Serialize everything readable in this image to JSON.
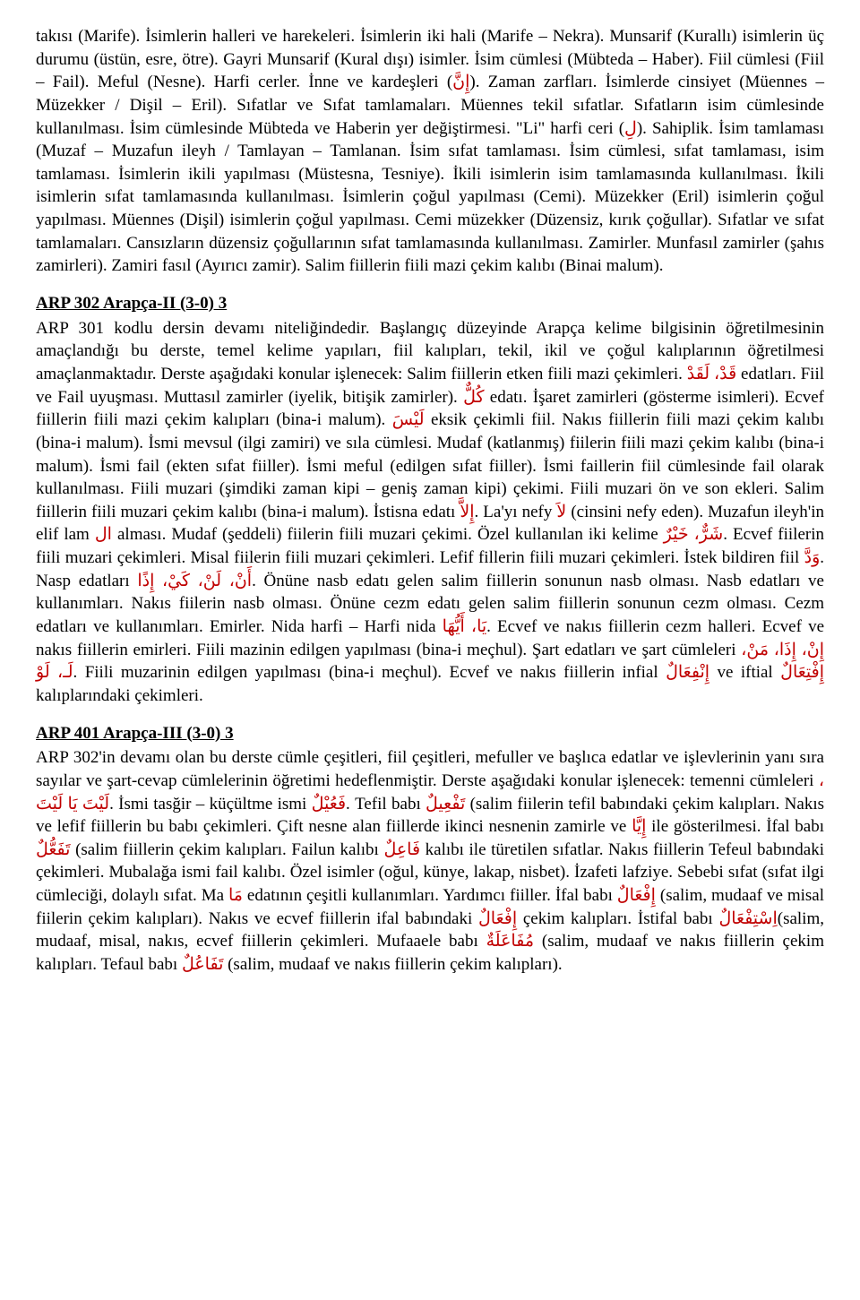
{
  "colors": {
    "text": "#000000",
    "arabic": "#c00000",
    "background": "#ffffff"
  },
  "typography": {
    "body_font": "Times New Roman",
    "body_size_pt": 14,
    "heading_weight": "bold",
    "heading_underline": true
  },
  "para1": {
    "t1": "takısı (Marife). İsimlerin halleri ve harekeleri. İsimlerin iki hali (Marife – Nekra). Munsarif (Kurallı) isimlerin üç durumu (üstün, esre, ötre). Gayri Munsarif (Kural dışı) isimler. İsim cümlesi (Mübteda – Haber). Fiil cümlesi (Fiil – Fail). Meful (Nesne). Harfi cerler. İnne ve kardeşleri (",
    "a1": "إِنَّ",
    "t2": "). Zaman zarfları. İsimlerde cinsiyet (Müennes – Müzekker / Dişil – Eril). Sıfatlar ve Sıfat tamlamaları. Müennes tekil sıfatlar. Sıfatların isim cümlesinde kullanılması. İsim cümlesinde Mübteda ve Haberin yer değiştirmesi. \"Li\" harfi ceri (",
    "a2": "لِ",
    "t3": "). Sahiplik. İsim tamlaması (Muzaf – Muzafun ileyh / Tamlayan – Tamlanan. İsim sıfat tamlaması. İsim cümlesi, sıfat tamlaması, isim tamlaması. İsimlerin ikili yapılması (Müstesna, Tesniye). İkili isimlerin isim tamlamasında kullanılması. İkili isimlerin sıfat tamlamasında kullanılması. İsimlerin çoğul yapılması (Cemi). Müzekker (Eril) isimlerin çoğul yapılması. Müennes (Dişil) isimlerin çoğul yapılması. Cemi müzekker (Düzensiz, kırık çoğullar). Sıfatlar ve sıfat tamlamaları. Cansızların düzensiz çoğullarının sıfat tamlamasında kullanılması. Zamirler. Munfasıl zamirler (şahıs zamirleri). Zamiri fasıl (Ayırıcı zamir). Salim fiillerin fiili mazi çekim kalıbı (Binai malum)."
  },
  "heading2": "ARP 302 Arapça-II (3-0) 3",
  "para2": {
    "t1": "ARP 301 kodlu dersin devamı niteliğindedir. Başlangıç düzeyinde Arapça kelime bilgisinin öğretilmesinin amaçlandığı bu derste, temel kelime yapıları, fiil kalıpları, tekil, ikil ve çoğul kalıplarının öğretilmesi amaçlanmaktadır. Derste aşağıdaki konular işlenecek: Salim fiillerin etken fiili mazi çekimleri. ",
    "a1": "قَدْ، لَقَدْ",
    "t2": " edatları. Fiil ve Fail uyuşması. Muttasıl zamirler (iyelik, bitişik zamirler). ",
    "a2": "كُلٌّ",
    "t3": " edatı.  İşaret zamirleri (gösterme isimleri). Ecvef fiillerin fiili mazi çekim kalıpları (bina-i malum). ",
    "a3": "لَيْسَ",
    "t4": " eksik çekimli fiil. Nakıs fiillerin fiili mazi çekim kalıbı (bina-i malum). İsmi mevsul (ilgi zamiri) ve sıla cümlesi. Mudaf (katlanmış) fiilerin fiili mazi çekim kalıbı (bina-i malum). İsmi fail (ekten sıfat fiiller). İsmi meful (edilgen sıfat fiiller). İsmi faillerin fiil cümlesinde fail olarak kullanılması. Fiili muzari (şimdiki zaman kipi – geniş zaman kipi) çekimi. Fiili muzari ön ve son ekleri. Salim fiillerin fiili muzari çekim kalıbı (bina-i malum). İstisna edatı ",
    "a4": "إِلاَّ",
    "t5": ". La'yı nefy ",
    "a5": "لاَ",
    "t6": " (cinsini nefy eden).  Muzafun ileyh'in elif lam ",
    "a6": "ال",
    "t7": " alması.  Mudaf (şeddeli) fiilerin fiili muzari çekimi. Özel kullanılan iki kelime ",
    "a7": "شَرٌّ، خَيْرٌ",
    "t8": ". Ecvef fiilerin fiili muzari çekimleri. Misal fiilerin fiili muzari çekimleri. Lefif fillerin fiili muzari çekimleri. İstek bildiren fiil ",
    "a8": "وَدَّ",
    "t9": ".  Nasp edatları ",
    "a9": "أَنْ، لَنْ، كَيْ، إِذًا",
    "t10": ". Önüne nasb edatı gelen salim fiillerin sonunun nasb olması. Nasb edatları ve kullanımları. Nakıs fiilerin nasb olması. Önüne cezm edatı gelen salim fiillerin sonunun cezm olması. Cezm edatları ve kullanımları. Emirler. Nida harfi – Harfi nida ",
    "a10": "يَا، أَيُّهَا",
    "t11": ". Ecvef ve nakıs fiillerin cezm halleri. Ecvef ve nakıs fiillerin emirleri. Fiili mazinin edilgen yapılması (bina-i meçhul). Şart edatları ve şart cümleleri ",
    "a11": "إِنْ، إِذَا، مَنْ، لَـ، لَوْ",
    "t12": ". Fiili muzarinin edilgen yapılması (bina-i meçhul). Ecvef ve nakıs fiillerin infial ",
    "a12": "إِنْفِعَالٌ",
    "t13": " ve iftial ",
    "a13": "إِفْتِعَالٌ",
    "t14": " kalıplarındaki çekimleri."
  },
  "heading3": "ARP 401 Arapça-III (3-0) 3",
  "para3": {
    "t1": "ARP 302'in devamı olan bu derste cümle çeşitleri, fiil çeşitleri, mefuller ve başlıca edatlar ve işlevlerinin yanı sıra sayılar ve şart-cevap cümlelerinin öğretimi hedeflenmiştir. Derste aşağıdaki konular işlenecek: temenni cümleleri ",
    "a1": "، لَيْتَ يَا لَيْتَ",
    "t2": ". İsmi tasğir – küçültme ismi ",
    "a2": "فَعُيْلٌ",
    "t3": ". Tefil babı ",
    "a3": "تَفْعِيلٌ",
    "t4": " (salim fiilerin tefil babındaki çekim kalıpları. Nakıs ve lefif fiillerin bu babı çekimleri. Çift nesne alan fiillerde ikinci nesnenin zamirle ve ",
    "a4": "إِيَّا",
    "t5": " ile gösterilmesi. İfal babı ",
    "a5": "تَفَعُّلٌ",
    "t6": " (salim fiillerin çekim kalıpları. Failun kalıbı ",
    "a6": "فَاعِلٌ",
    "t7": " kalıbı ile türetilen sıfatlar. Nakıs fiillerin Tefeul babındaki çekimleri. Mubalağa ismi fail kalıbı. Özel isimler (oğul, künye, lakap, nisbet). İzafeti lafziye. Sebebi sıfat (sıfat ilgi cümleciği, dolaylı sıfat. Ma ",
    "a7": "مَا",
    "t8": " edatının çeşitli kullanımları. Yardımcı fiiller. İfal babı ",
    "a8": "إِفْعَالٌ",
    "t9": " (salim, mudaaf ve misal fiilerin çekim kalıpları). Nakıs ve ecvef fiillerin ifal babındaki ",
    "a9": "إِفْعَالٌ",
    "t10": " çekim kalıpları. İstifal babı ",
    "a10": "اِسْتِفْعَالٌ",
    "t11": "(salim, mudaaf, misal, nakıs, ecvef fiillerin çekimleri. Mufaaele babı ",
    "a11": "مُفَاعَلَةٌ",
    "t12": " (salim, mudaaf ve nakıs fiillerin çekim kalıpları. Tefaul babı ",
    "a12": "تَفَاعُلٌ",
    "t13": " (salim, mudaaf ve nakıs fiillerin çekim kalıpları)."
  }
}
